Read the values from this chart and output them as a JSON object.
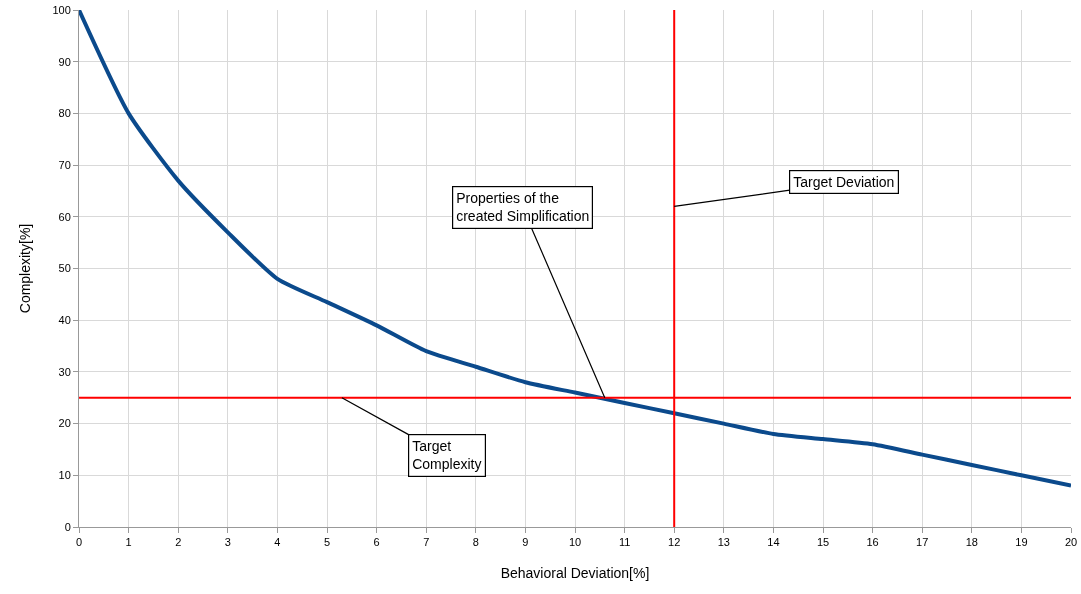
{
  "chart_data": {
    "type": "line",
    "xlabel": "Behavioral Deviation[%]",
    "ylabel": "Complexity[%]",
    "x": [
      0,
      1,
      2,
      3,
      4,
      5,
      6,
      7,
      8,
      9,
      10,
      11,
      12,
      13,
      14,
      15,
      16,
      17,
      18,
      19,
      20
    ],
    "series": [
      {
        "color": "#0b4a8c",
        "values": [
          100,
          80,
          67,
          57,
          48,
          43.5,
          39,
          34,
          31,
          28,
          26,
          24,
          22,
          20,
          18,
          17,
          16,
          14,
          12,
          10,
          8
        ]
      }
    ],
    "xlim": [
      0,
      20
    ],
    "xticks": [
      0,
      1,
      2,
      3,
      4,
      5,
      6,
      7,
      8,
      9,
      10,
      11,
      12,
      13,
      14,
      15,
      16,
      17,
      18,
      19,
      20
    ],
    "ylim": [
      0,
      100
    ],
    "yticks": [
      0,
      10,
      20,
      30,
      40,
      50,
      60,
      70,
      80,
      90,
      100
    ],
    "grid": true,
    "marker": "none",
    "line_style": "solid",
    "ref_lines": [
      {
        "axis": "y",
        "value": 25,
        "color": "#ff0000"
      },
      {
        "axis": "x",
        "value": 12,
        "color": "#ff0000"
      }
    ],
    "annotations": [
      {
        "text": "Target Deviation",
        "x": 12,
        "y": 62
      },
      {
        "text": "Properties of the\ncreated Simplification",
        "x": 10.6,
        "y": 25
      },
      {
        "text": "Target\nComplexity",
        "x": 5.3,
        "y": 25
      }
    ]
  }
}
